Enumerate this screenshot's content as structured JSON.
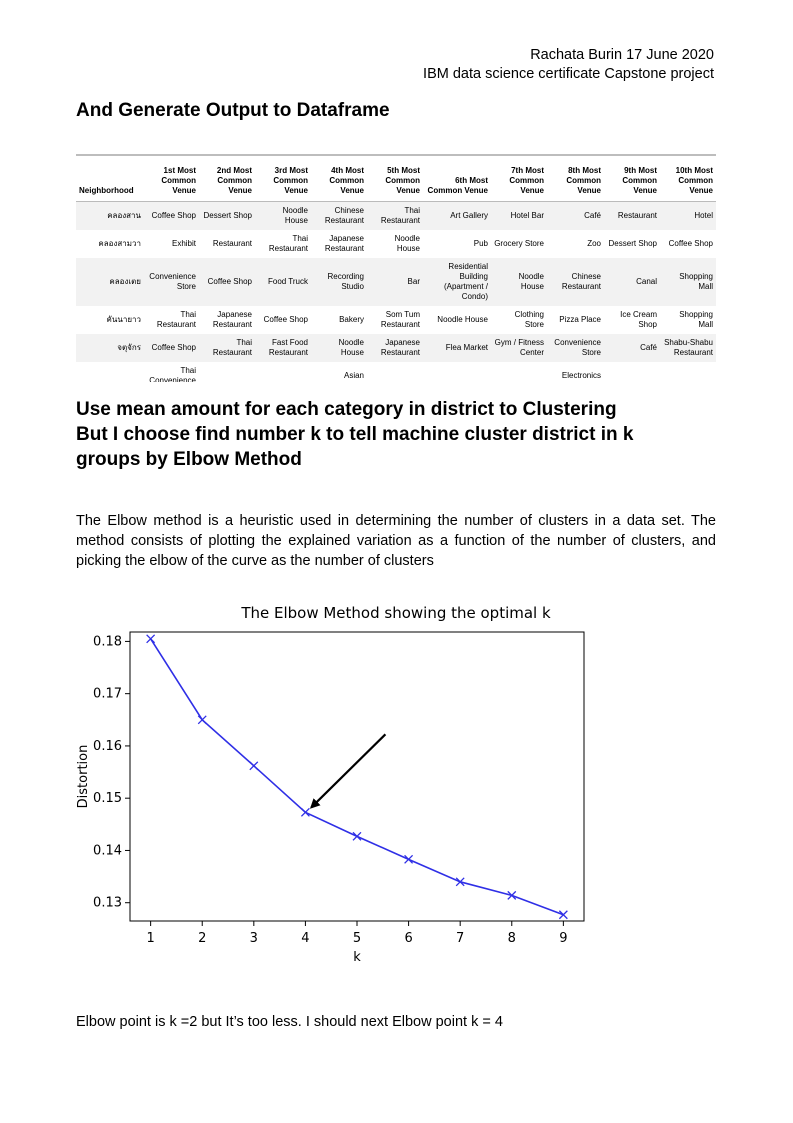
{
  "header": {
    "author_date": "Rachata Burin 17 June 2020",
    "project": "IBM data science certificate Capstone project"
  },
  "section1": {
    "heading": "And Generate Output to Dataframe"
  },
  "table": {
    "columns": [
      "Neighborhood",
      "1st Most Common Venue",
      "2nd Most Common Venue",
      "3rd Most Common Venue",
      "4th Most Common Venue",
      "5th Most Common Venue",
      "6th Most Common Venue",
      "7th Most Common Venue",
      "8th Most Common Venue",
      "9th Most Common Venue",
      "10th Most Common Venue"
    ],
    "rows": [
      [
        "คลองสาน",
        "Coffee Shop",
        "Dessert Shop",
        "Noodle House",
        "Chinese Restaurant",
        "Thai Restaurant",
        "Art Gallery",
        "Hotel Bar",
        "Café",
        "Restaurant",
        "Hotel"
      ],
      [
        "คลองสามวา",
        "Exhibit",
        "Restaurant",
        "Thai Restaurant",
        "Japanese Restaurant",
        "Noodle House",
        "Pub",
        "Grocery Store",
        "Zoo",
        "Dessert Shop",
        "Coffee Shop"
      ],
      [
        "คลองเตย",
        "Convenience Store",
        "Coffee Shop",
        "Food Truck",
        "Recording Studio",
        "Bar",
        "Residential Building (Apartment / Condo)",
        "Noodle House",
        "Chinese Restaurant",
        "Canal",
        "Shopping Mall"
      ],
      [
        "คันนายาว",
        "Thai Restaurant",
        "Japanese Restaurant",
        "Coffee Shop",
        "Bakery",
        "Som Tum Restaurant",
        "Noodle House",
        "Clothing Store",
        "Pizza Place",
        "Ice Cream Shop",
        "Shopping Mall"
      ],
      [
        "จตุจักร",
        "Coffee Shop",
        "Thai Restaurant",
        "Fast Food Restaurant",
        "Noodle House",
        "Japanese Restaurant",
        "Flea Market",
        "Gym / Fitness Center",
        "Convenience Store",
        "Café",
        "Shabu-Shabu Restaurant"
      ],
      [
        "",
        "Thai Convenience",
        "",
        "",
        "Asian",
        "",
        "",
        "",
        "Electronics",
        "",
        ""
      ]
    ]
  },
  "section2": {
    "heading_lines": [
      "Use mean amount for each category in district to Clustering",
      "But I choose find number k to tell machine cluster district in k",
      "groups by Elbow Method"
    ],
    "paragraph": "The Elbow method is a heuristic used in determining the number of clusters in a data set. The method consists of plotting the explained variation as a function of the number of clusters, and picking the elbow of the curve as the number of clusters"
  },
  "chart_data": {
    "type": "line",
    "title": "The Elbow Method showing the optimal k",
    "xlabel": "k",
    "ylabel": "Distortion",
    "x": [
      1,
      2,
      3,
      4,
      5,
      6,
      7,
      8,
      9
    ],
    "series": [
      {
        "values": [
          0.1805,
          0.165,
          0.1562,
          0.1473,
          0.1427,
          0.1383,
          0.134,
          0.1314,
          0.1277
        ]
      }
    ],
    "xticks": [
      "1",
      "2",
      "3",
      "4",
      "5",
      "6",
      "7",
      "8",
      "9"
    ],
    "yticks": [
      "0.13",
      "0.14",
      "0.15",
      "0.16",
      "0.17",
      "0.18"
    ],
    "ytick_values": [
      0.13,
      0.14,
      0.15,
      0.16,
      0.17,
      0.18
    ],
    "xlim": [
      0.6,
      9.4
    ],
    "ylim": [
      0.1265,
      0.1818
    ],
    "marker": "x",
    "line_color": "#2f2fe6",
    "grid": false,
    "annotation": {
      "type": "arrow",
      "points_to_k": 4
    }
  },
  "conclusion": "Elbow point is k =2 but It’s too less. I should next Elbow point k = 4"
}
